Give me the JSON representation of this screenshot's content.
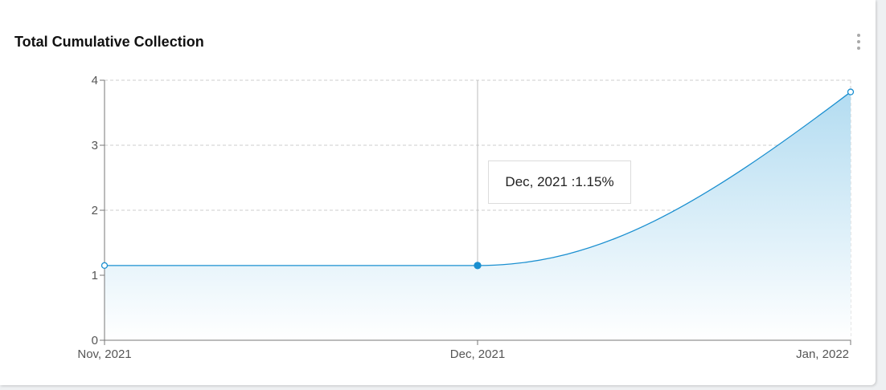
{
  "card": {
    "title": "Total Cumulative Collection",
    "menu_icon": "more-vertical-icon"
  },
  "tooltip": {
    "text": "Dec, 2021 :1.15%"
  },
  "colors": {
    "line": "#1a8fd0",
    "area_top": "#b3dcf1",
    "area_bottom": "#ffffff",
    "grid": "#cccccc",
    "axis": "#777777",
    "crosshair": "#bbbbbb"
  },
  "chart_data": {
    "type": "area",
    "categories": [
      "Nov, 2021",
      "Dec, 2021",
      "Jan, 2022"
    ],
    "series": [
      {
        "values": [
          1.15,
          1.15,
          3.82
        ]
      }
    ],
    "ylim": [
      0,
      4
    ],
    "yticks": [
      0,
      1,
      2,
      3,
      4
    ],
    "grid": true,
    "hovered_index": 1
  }
}
